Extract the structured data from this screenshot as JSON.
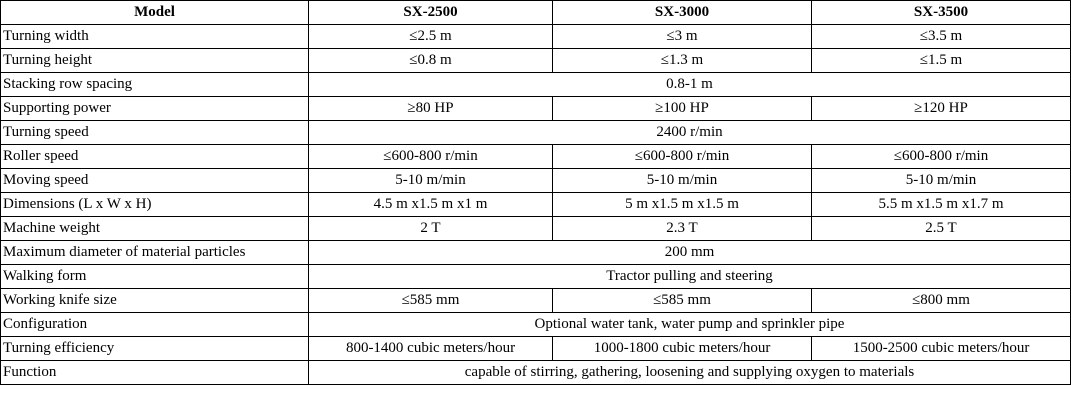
{
  "table": {
    "header": [
      "Model",
      "SX-2500",
      "SX-3000",
      "SX-3500"
    ],
    "rows": [
      [
        "Turning width",
        "≤2.5 m",
        "≤3 m",
        "≤3.5 m"
      ],
      [
        "Turning height",
        "≤0.8 m",
        "≤1.3 m",
        "≤1.5 m"
      ],
      [
        "Stacking row spacing",
        "0.8-1 m"
      ],
      [
        "Supporting power",
        "≥80 HP",
        "≥100 HP",
        "≥120 HP"
      ],
      [
        "Turning speed",
        "2400 r/min"
      ],
      [
        "Roller speed",
        "≤600-800 r/min",
        "≤600-800 r/min",
        "≤600-800 r/min"
      ],
      [
        "Moving speed",
        "5-10 m/min",
        "5-10 m/min",
        "5-10 m/min"
      ],
      [
        "Dimensions (L x W x H)",
        "4.5 m x1.5 m x1 m",
        "5 m x1.5 m x1.5 m",
        "5.5 m x1.5 m x1.7 m"
      ],
      [
        "Machine weight",
        "2 T",
        "2.3 T",
        "2.5 T"
      ],
      [
        "Maximum diameter of material particles",
        "200 mm"
      ],
      [
        "Walking form",
        "Tractor pulling and steering"
      ],
      [
        "Working knife size",
        "≤585 mm",
        "≤585 mm",
        "≤800 mm"
      ],
      [
        "Configuration",
        "Optional water tank, water pump and sprinkler pipe"
      ],
      [
        "Turning efficiency",
        "800-1400 cubic meters/hour",
        "1000-1800 cubic meters/hour",
        "1500-2500 cubic meters/hour"
      ],
      [
        "Function",
        "capable of stirring, gathering, loosening and supplying oxygen to materials"
      ]
    ]
  }
}
